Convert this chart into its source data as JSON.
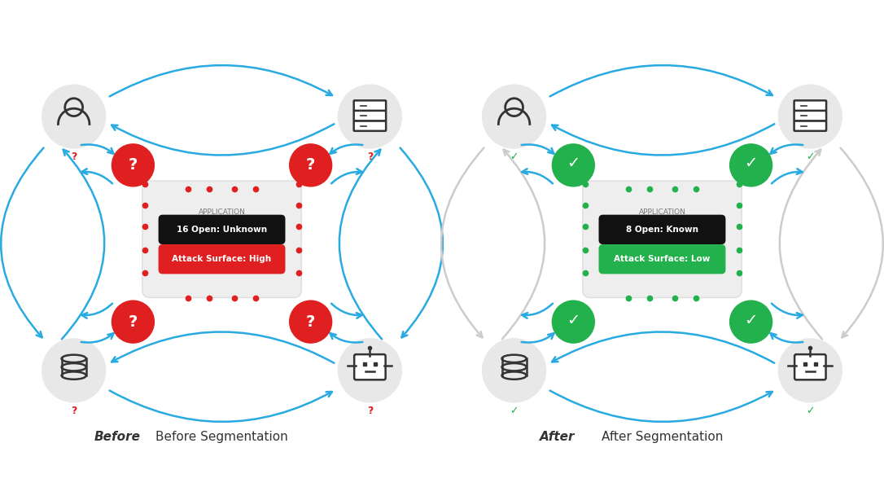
{
  "bg_color": "#ffffff",
  "gray_light": "#e8e8e8",
  "gray_medium": "#cccccc",
  "blue": "#29aae1",
  "red": "#e02020",
  "green": "#22b14c",
  "icon_color": "#333333",
  "app_label": "APPLICATION",
  "before_line1": "16 Open: Unknown",
  "before_line2": "Attack Surface: High",
  "after_line1": "8 Open: Known",
  "after_line2": "Attack Surface: Low",
  "before_title_italic": "Before",
  "after_title_italic": "After",
  "title_rest": " Segmentation"
}
